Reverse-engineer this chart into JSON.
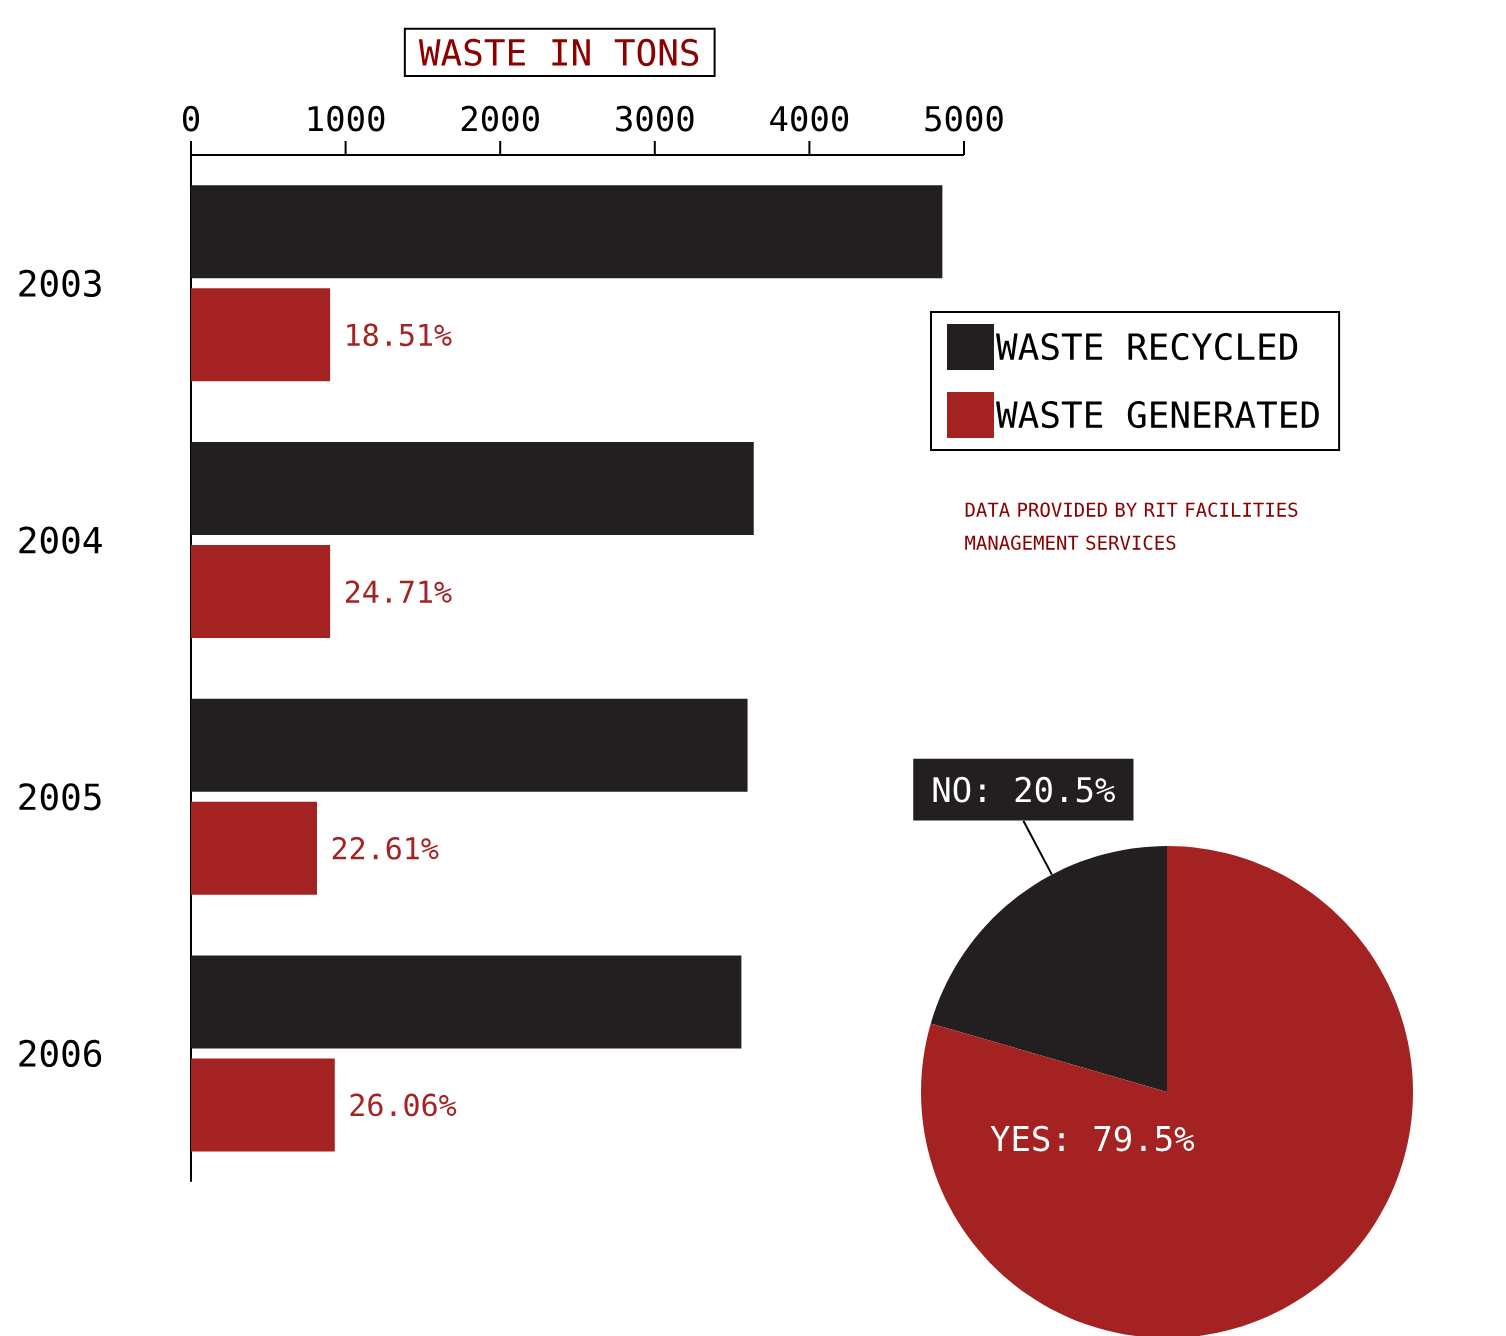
{
  "chart_data": [
    {
      "type": "bar",
      "orientation": "horizontal",
      "title": "WASTE IN TONS",
      "categories": [
        "2003",
        "2004",
        "2005",
        "2006"
      ],
      "series": [
        {
          "name": "WASTE RECYCLED",
          "color": "#231f20",
          "values": [
            4860,
            3640,
            3600,
            3560
          ]
        },
        {
          "name": "WASTE GENERATED",
          "color": "#a52223",
          "values": [
            900,
            900,
            815,
            930
          ]
        }
      ],
      "xlim": [
        0,
        5000
      ],
      "xticks": [
        0,
        1000,
        2000,
        3000,
        4000,
        5000
      ],
      "legend": "right",
      "annotations": [
        {
          "text": "18.51%",
          "x": 900,
          "y": "2003"
        },
        {
          "text": "24.71%",
          "x": 900,
          "y": "2004"
        },
        {
          "text": "22.61%",
          "x": 815,
          "y": "2005"
        },
        {
          "text": "26.06%",
          "x": 930,
          "y": "2006"
        },
        "DATA PROVIDED BY RIT FACILITIES MANAGEMENT SERVICES"
      ]
    },
    {
      "type": "pie",
      "categories": [
        "NO: 20.5%",
        "YES: 79.5%"
      ],
      "values": [
        20.5,
        79.5
      ],
      "colors": [
        "#231f20",
        "#a52223"
      ]
    }
  ]
}
